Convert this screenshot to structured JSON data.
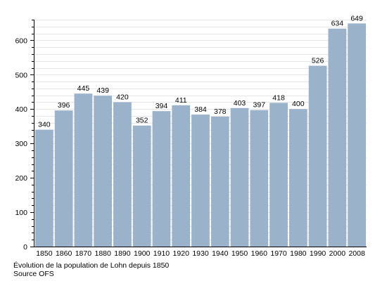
{
  "chart_data": {
    "type": "bar",
    "categories": [
      "1850",
      "1860",
      "1870",
      "1880",
      "1890",
      "1900",
      "1910",
      "1920",
      "1930",
      "1940",
      "1950",
      "1960",
      "1970",
      "1980",
      "1990",
      "2000",
      "2008"
    ],
    "values": [
      340,
      396,
      445,
      439,
      420,
      352,
      394,
      411,
      384,
      378,
      403,
      397,
      418,
      400,
      526,
      634,
      649
    ],
    "data_labels": [
      "340",
      "396",
      "445",
      "439",
      "420",
      "352",
      "394",
      "411",
      "384",
      "378",
      "403",
      "397",
      "418",
      "400",
      "526",
      "634",
      "649"
    ],
    "ylim": [
      0,
      660
    ],
    "yticks": [
      0,
      100,
      200,
      300,
      400,
      500,
      600
    ],
    "ytick_labels": [
      "0",
      "100",
      "200",
      "300",
      "400",
      "500",
      "600"
    ],
    "grid": true,
    "colors": {
      "bar": "#9bb2cb",
      "grid": "#e6e6e6"
    }
  },
  "caption": {
    "line1": "Évolution de la population de Lohn depuis 1850",
    "line2": "Source OFS"
  }
}
